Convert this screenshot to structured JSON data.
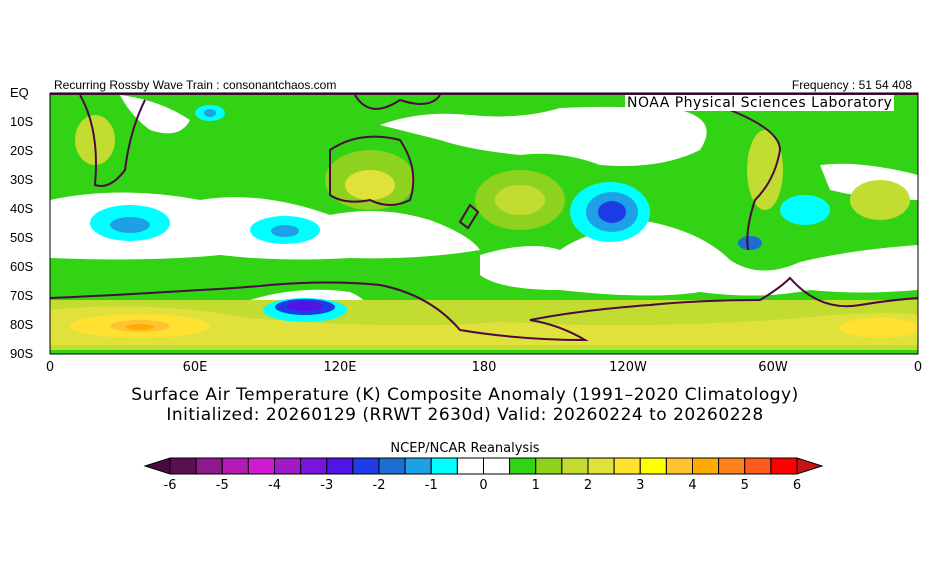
{
  "header": {
    "left": "Recurring Rossby Wave Train : consonantchaos.com",
    "right": "Frequency : 51 54 408",
    "credit": "NOAA Physical Sciences Laboratory"
  },
  "map": {
    "lat_labels": [
      "EQ",
      "10S",
      "20S",
      "30S",
      "40S",
      "50S",
      "60S",
      "70S",
      "80S",
      "90S"
    ],
    "lon_labels": [
      "0",
      "60E",
      "120E",
      "180",
      "120W",
      "60W",
      "0"
    ]
  },
  "title": {
    "line1": "Surface Air Temperature (K) Composite Anomaly (1991–2020 Climatology)",
    "line2": "Initialized: 20260129 (RRWT 2630d) Valid: 20260224 to 20260228"
  },
  "colorbar": {
    "title": "NCEP/NCAR Reanalysis",
    "labels": [
      "-6",
      "-5",
      "-4",
      "-3",
      "-2",
      "-1",
      "0",
      "1",
      "2",
      "3",
      "4",
      "5",
      "6"
    ],
    "colors": [
      "#5a1050",
      "#8c1a8c",
      "#b41ab4",
      "#d21ad2",
      "#a01ac8",
      "#7814dc",
      "#5014e6",
      "#1e3ce6",
      "#1e6ed2",
      "#1ea0e6",
      "#00ffff",
      "#ffffff",
      "#ffffff",
      "#32d214",
      "#8cd21e",
      "#c3dc32",
      "#e1e13c",
      "#ffe132",
      "#ffff00",
      "#ffc332",
      "#ffaa00",
      "#ff821e",
      "#ff5a1e",
      "#ff0000"
    ],
    "low_color": "#4a0a40",
    "high_color": "#c81414"
  }
}
